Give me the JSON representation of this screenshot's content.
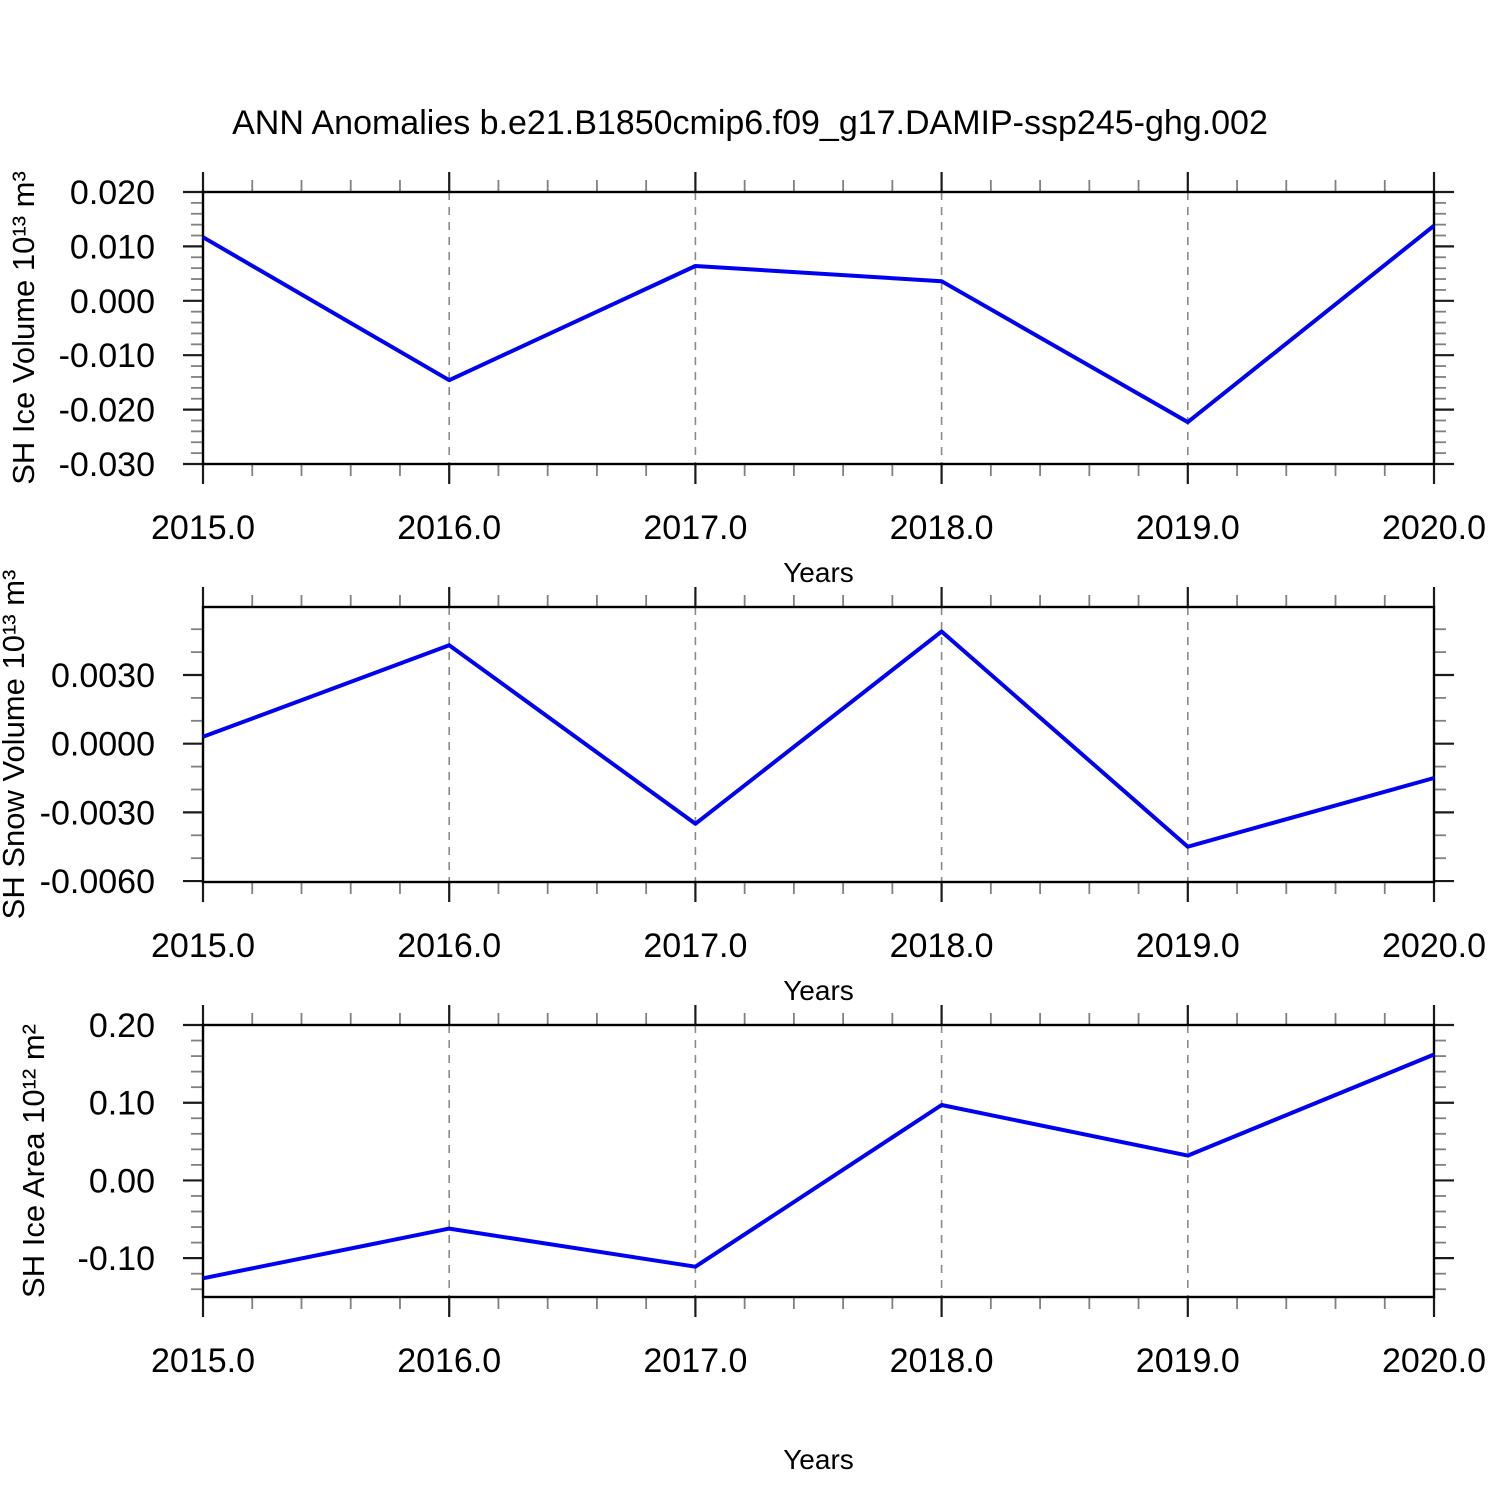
{
  "title": "ANN Anomalies b.e21.B1850cmip6.f09_g17.DAMIP-ssp245-ghg.002",
  "line_color": "#0000f2",
  "grid_color": "#8a8a8a",
  "chart_data": [
    {
      "type": "line",
      "id": "sh-ice-volume",
      "ylabel": "SH Ice Volume 10¹³ m³",
      "xlabel": "Years",
      "x": [
        2015,
        2016,
        2017,
        2018,
        2019,
        2020
      ],
      "values": [
        0.0117,
        -0.0146,
        0.0064,
        0.0036,
        -0.0223,
        0.0138
      ],
      "xlim": [
        2015,
        2020
      ],
      "ylim": [
        -0.03,
        0.02
      ],
      "yticks": [
        0.02,
        0.01,
        0.0,
        -0.01,
        -0.02,
        -0.03
      ],
      "ytick_labels": [
        "0.020",
        "0.010",
        "0.000",
        "-0.010",
        "-0.020",
        "-0.030"
      ],
      "yminor_step": 0.002,
      "xticks": [
        2015,
        2016,
        2017,
        2018,
        2019,
        2020
      ],
      "xtick_labels": [
        "2015.0",
        "2016.0",
        "2017.0",
        "2018.0",
        "2019.0",
        "2020.0"
      ],
      "xminor_step": 0.2,
      "gridlines_x": [
        2016,
        2017,
        2018,
        2019
      ],
      "grid": "vertical-dashed",
      "legend": "none"
    },
    {
      "type": "line",
      "id": "sh-snow-volume",
      "ylabel": "SH Snow Volume 10¹³ m³",
      "xlabel": "Years",
      "x": [
        2015,
        2016,
        2017,
        2018,
        2019,
        2020
      ],
      "values": [
        0.0003,
        0.0043,
        -0.0035,
        0.0049,
        -0.0045,
        -0.0015
      ],
      "xlim": [
        2015,
        2020
      ],
      "ylim": [
        -0.00604,
        0.00597
      ],
      "yticks": [
        0.003,
        0.0,
        -0.003,
        -0.006
      ],
      "ytick_labels": [
        "0.0030",
        "0.0000",
        "-0.0030",
        "-0.0060"
      ],
      "yminor_step": 0.001,
      "xticks": [
        2015,
        2016,
        2017,
        2018,
        2019,
        2020
      ],
      "xtick_labels": [
        "2015.0",
        "2016.0",
        "2017.0",
        "2018.0",
        "2019.0",
        "2020.0"
      ],
      "xminor_step": 0.2,
      "gridlines_x": [
        2016,
        2017,
        2018,
        2019
      ],
      "grid": "vertical-dashed",
      "legend": "none"
    },
    {
      "type": "line",
      "id": "sh-ice-area",
      "ylabel": "SH Ice Area 10¹² m²",
      "xlabel": "Years",
      "x": [
        2015,
        2016,
        2017,
        2018,
        2019,
        2020
      ],
      "values": [
        -0.126,
        -0.062,
        -0.111,
        0.097,
        0.032,
        0.162
      ],
      "xlim": [
        2015,
        2020
      ],
      "ylim": [
        -0.15,
        0.2
      ],
      "yticks": [
        0.2,
        0.1,
        0.0,
        -0.1
      ],
      "ytick_labels": [
        "0.20",
        "0.10",
        "0.00",
        "-0.10"
      ],
      "yminor_step": 0.02,
      "xticks": [
        2015,
        2016,
        2017,
        2018,
        2019,
        2020
      ],
      "xtick_labels": [
        "2015.0",
        "2016.0",
        "2017.0",
        "2018.0",
        "2019.0",
        "2020.0"
      ],
      "xminor_step": 0.2,
      "gridlines_x": [
        2016,
        2017,
        2018,
        2019
      ],
      "grid": "vertical-dashed",
      "legend": "none"
    }
  ]
}
